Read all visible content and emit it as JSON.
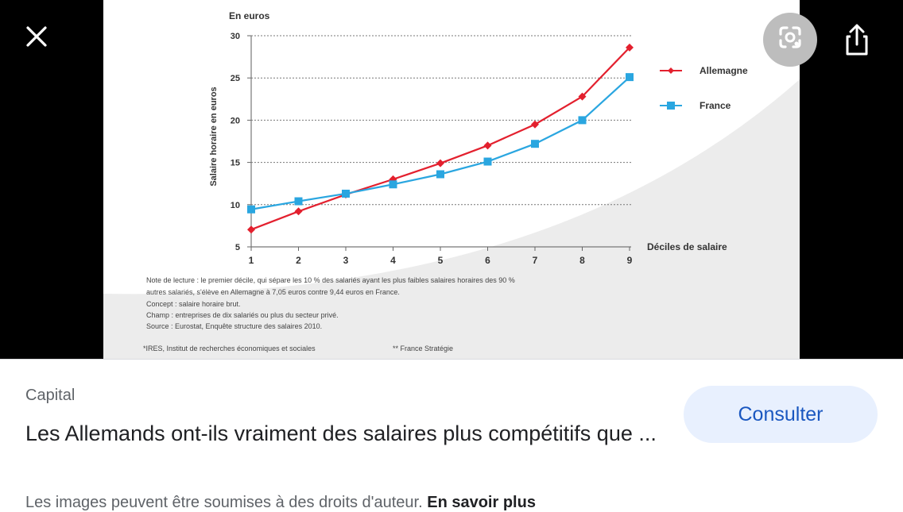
{
  "viewer": {
    "close_icon": "close-icon",
    "lens_icon": "lens-icon",
    "share_icon": "share-icon"
  },
  "chart_data": {
    "type": "line",
    "unit_label": "En euros",
    "ylabel": "Salaire horaire en euros",
    "xlabel": "Déciles de salaire",
    "x": [
      1,
      2,
      3,
      4,
      5,
      6,
      7,
      8,
      9
    ],
    "y_ticks": [
      5,
      10,
      15,
      20,
      25,
      30
    ],
    "ylim": [
      5,
      30
    ],
    "grid": "horizontal dotted",
    "legend_position": "right",
    "series": [
      {
        "name": "Allemagne",
        "color": "#e3202e",
        "marker": "diamond",
        "values": [
          7.05,
          9.2,
          11.2,
          13.0,
          14.9,
          17.0,
          19.5,
          22.8,
          28.6
        ]
      },
      {
        "name": "France",
        "color": "#2aa6e0",
        "marker": "square",
        "values": [
          9.44,
          10.4,
          11.3,
          12.4,
          13.6,
          15.1,
          17.2,
          20.0,
          25.1
        ]
      }
    ],
    "notes": [
      "Note de lecture : le premier décile, qui sépare les 10 % des salariés ayant les plus faibles salaires horaires des 90 %",
      "autres salariés, s'élève en Allemagne à 7,05 euros contre 9,44 euros en France.",
      "Concept : salaire horaire brut.",
      "Champ : entreprises de dix salariés ou plus du secteur privé.",
      "Source : Eurostat, Enquête structure des salaires 2010."
    ],
    "footnote_left": "*IRES, Institut de recherches économiques et sociales",
    "footnote_right": "** France Stratégie"
  },
  "result": {
    "source": "Capital",
    "title": "Les Allemands ont-ils vraiment des salaires plus compétitifs que ...",
    "button_label": "Consulter",
    "rights_text": "Les images peuvent être soumises à des droits d'auteur.",
    "learn_more": "En savoir plus"
  }
}
